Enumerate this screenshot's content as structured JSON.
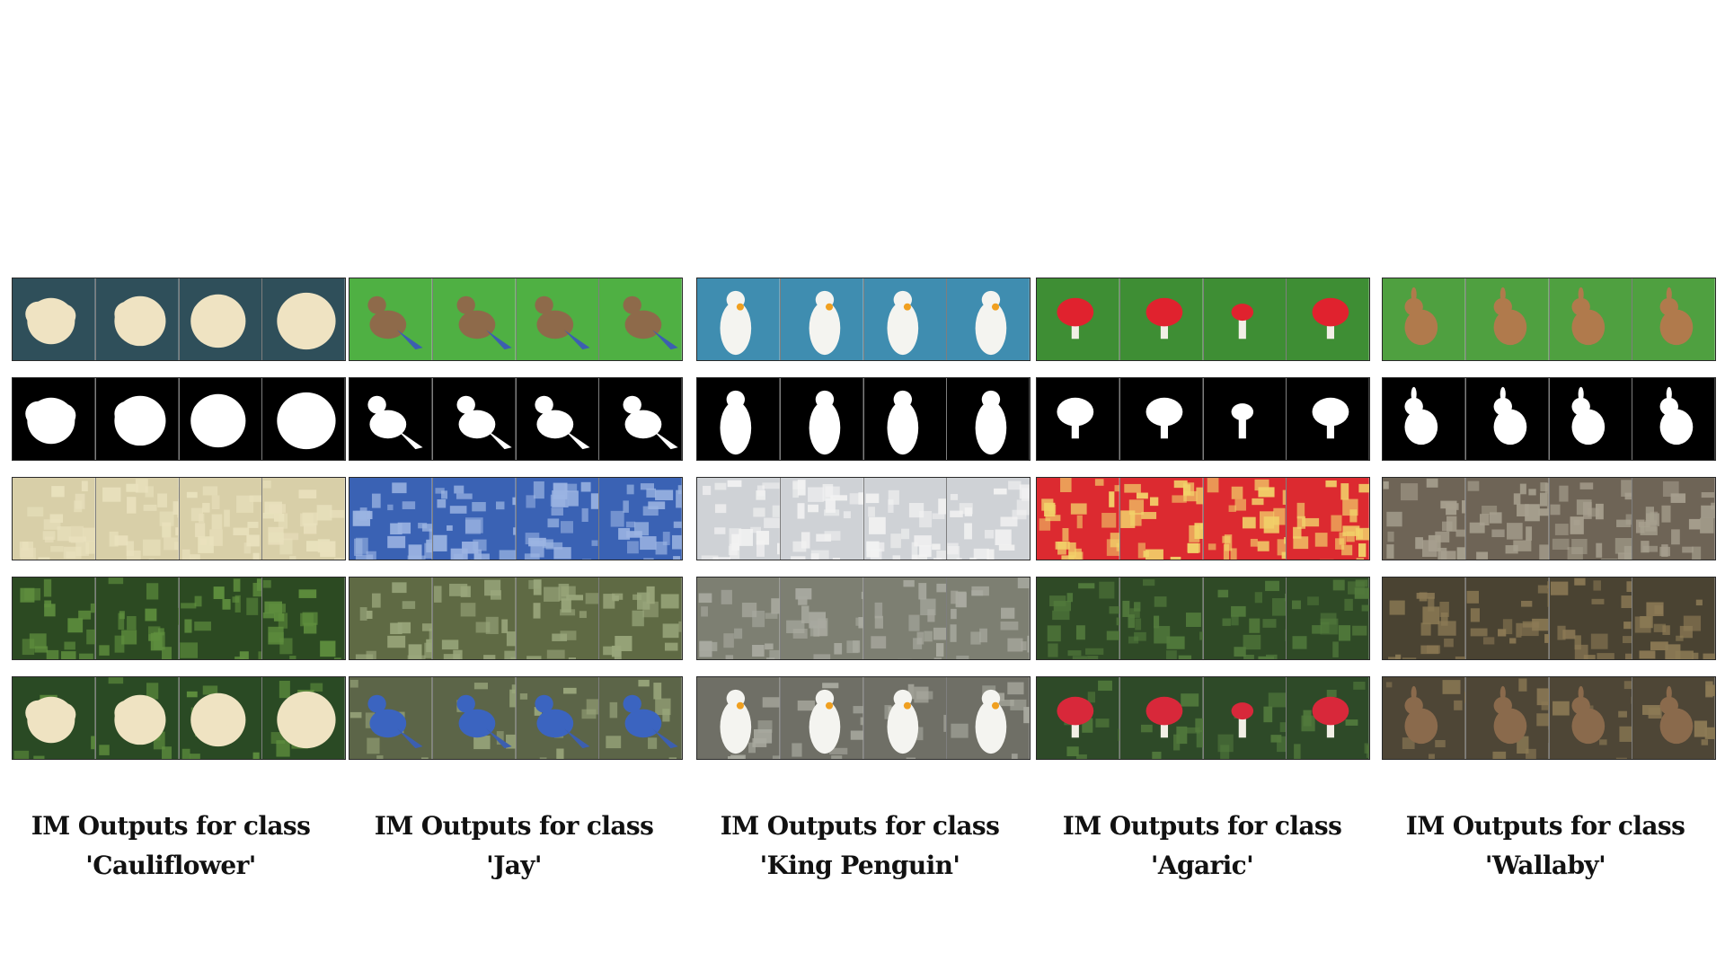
{
  "figure": {
    "columns": [
      {
        "caption_line1": "IM Outputs for class",
        "caption_line2": "'Cauliflower'",
        "subject": "cauliflower",
        "colors": {
          "object_bg": "#2f4f5a",
          "object_fg": "#efe3c2",
          "object_leaf": "#8fbf78",
          "texture_bg": "#d8cfa8",
          "texture_fg": "#e9e1bd",
          "context_bg": "#2c4a22",
          "context_fg": "#5f8f3e",
          "full_bg": "#2a4a24",
          "full_fg": "#efe3c2"
        }
      },
      {
        "caption_line1": "IM Outputs for class",
        "caption_line2": "'Jay'",
        "subject": "bird",
        "colors": {
          "object_bg": "#4fb043",
          "object_fg": "#8e6a4a",
          "object_leaf": "#3c5fb0",
          "texture_bg": "#3a62b4",
          "texture_fg": "#9bb4e2",
          "context_bg": "#5f6a44",
          "context_fg": "#9aa77c",
          "full_bg": "#5c6548",
          "full_fg": "#3b64c0"
        }
      },
      {
        "caption_line1": "IM Outputs for class",
        "caption_line2": "'King Penguin'",
        "subject": "penguin",
        "colors": {
          "object_bg": "#3f8db0",
          "object_fg": "#f4f4f0",
          "object_leaf": "#f0a020",
          "texture_bg": "#cfd2d6",
          "texture_fg": "#f2f2f2",
          "context_bg": "#7d7f72",
          "context_fg": "#a9aaa0",
          "full_bg": "#6f6f66",
          "full_fg": "#f4f4f0"
        }
      },
      {
        "caption_line1": "IM Outputs for class",
        "caption_line2": "'Agaric'",
        "subject": "mushroom",
        "colors": {
          "object_bg": "#3e8e34",
          "object_fg": "#e0222e",
          "object_leaf": "#f2efe6",
          "texture_bg": "#dc2a30",
          "texture_fg": "#f2d36a",
          "context_bg": "#2f4a26",
          "context_fg": "#527a3c",
          "full_bg": "#2e4a28",
          "full_fg": "#d8283a"
        }
      },
      {
        "caption_line1": "IM Outputs for class",
        "caption_line2": "'Wallaby'",
        "subject": "wallaby",
        "colors": {
          "object_bg": "#4fa040",
          "object_fg": "#b07a4c",
          "object_leaf": "#d9a777",
          "texture_bg": "#6e6456",
          "texture_fg": "#a7a08f",
          "context_bg": "#4a4332",
          "context_fg": "#8c7a55",
          "full_bg": "#4e4636",
          "full_fg": "#8a6a4c"
        }
      }
    ],
    "rows": [
      "object",
      "mask",
      "texture",
      "context",
      "full"
    ]
  }
}
